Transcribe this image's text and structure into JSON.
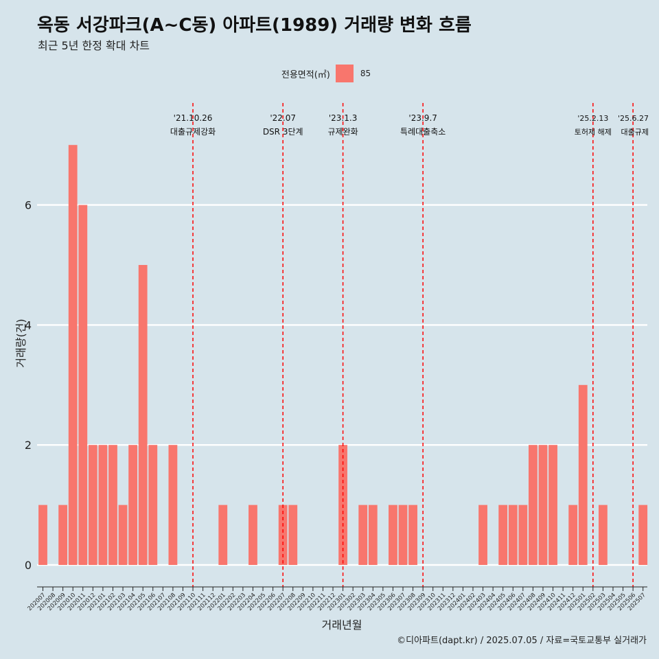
{
  "header": {
    "title": "옥동 서강파크(A~C동) 아파트(1989) 거래량 변화 흐름",
    "subtitle": "최근 5년 한정 확대 차트"
  },
  "legend": {
    "title": "전용면적(㎡)",
    "items": [
      {
        "label": "85",
        "color": "#f8766d"
      }
    ]
  },
  "caption": "©디아파트(dapt.kr) / 2025.07.05 / 자료=국토교통부 실거래가",
  "chart_data": {
    "type": "bar",
    "xlabel": "거래년월",
    "ylabel": "거래량(건)",
    "ylim": [
      0,
      7
    ],
    "yticks": [
      0,
      2,
      4,
      6
    ],
    "grid": true,
    "legend_position": "top",
    "bar_color": "#f8766d",
    "categories": [
      "202007",
      "202008",
      "202009",
      "202010",
      "202011",
      "202012",
      "202101",
      "202102",
      "202103",
      "202104",
      "202105",
      "202106",
      "202107",
      "202108",
      "202109",
      "202110",
      "202111",
      "202112",
      "202201",
      "202202",
      "202203",
      "202204",
      "202205",
      "202206",
      "202207",
      "202208",
      "202209",
      "202210",
      "202211",
      "202212",
      "202301",
      "202302",
      "202303",
      "202304",
      "202305",
      "202306",
      "202307",
      "202308",
      "202309",
      "202310",
      "202311",
      "202312",
      "202401",
      "202402",
      "202403",
      "202404",
      "202405",
      "202406",
      "202407",
      "202408",
      "202409",
      "202410",
      "202411",
      "202412",
      "202501",
      "202502",
      "202503",
      "202504",
      "202505",
      "202506",
      "202507"
    ],
    "series": [
      {
        "name": "85",
        "values": [
          1,
          0,
          1,
          7,
          6,
          2,
          2,
          2,
          1,
          2,
          5,
          2,
          0,
          2,
          0,
          0,
          0,
          0,
          1,
          0,
          0,
          1,
          0,
          0,
          1,
          1,
          0,
          0,
          0,
          0,
          2,
          0,
          1,
          1,
          0,
          1,
          1,
          1,
          0,
          0,
          0,
          0,
          0,
          0,
          1,
          0,
          1,
          1,
          1,
          2,
          2,
          2,
          0,
          1,
          3,
          0,
          1,
          0,
          0,
          0,
          1
        ]
      }
    ],
    "annotations": [
      {
        "date": "'21.10.26",
        "label": "대출규제강화",
        "x": "202110"
      },
      {
        "date": "'22.07",
        "label": "DSR 3단계",
        "x": "202207"
      },
      {
        "date": "'23.1.3",
        "label": "규제완화",
        "x": "202301"
      },
      {
        "date": "'23.9.7",
        "label": "특례대출축소",
        "x": "202309"
      },
      {
        "date": "'25.2.13",
        "label": "토허제 해제",
        "x": "202502"
      },
      {
        "date": "'25.6.27",
        "label": "대출규제",
        "x": "202506"
      }
    ]
  }
}
